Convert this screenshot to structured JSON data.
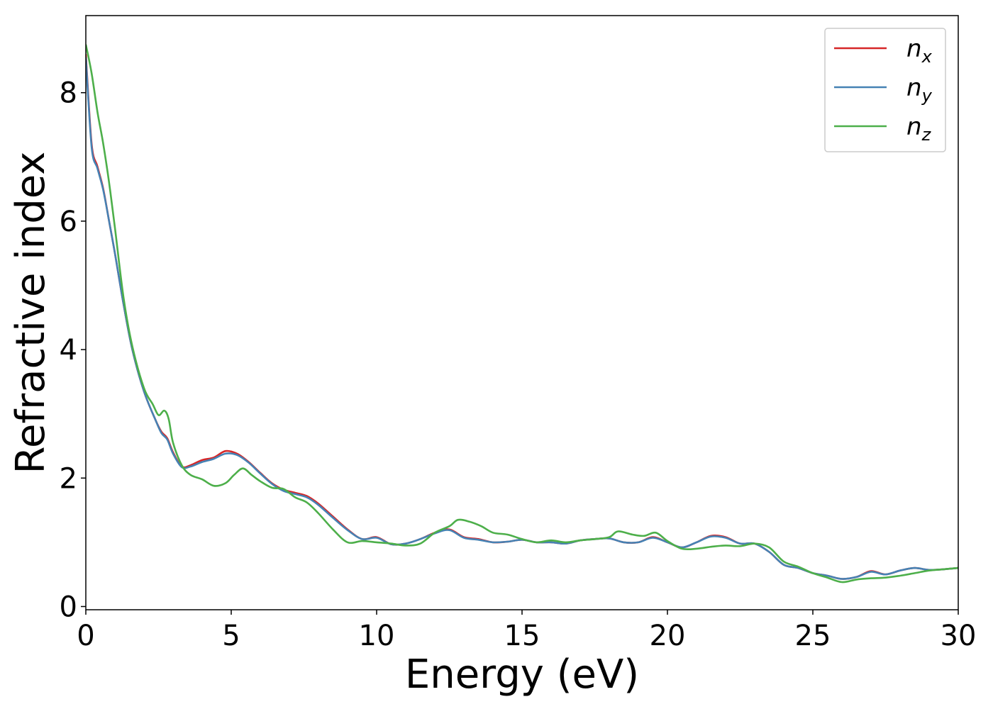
{
  "chart_data": {
    "type": "line",
    "xlabel": "Energy (eV)",
    "ylabel": "Refractive index",
    "xlim": [
      0,
      30
    ],
    "ylim": [
      -0.05,
      9.2
    ],
    "xticks": [
      0,
      5,
      10,
      15,
      20,
      25,
      30
    ],
    "yticks": [
      0,
      2,
      4,
      6,
      8
    ],
    "grid": false,
    "legend_position": "top-right",
    "series": [
      {
        "name": "n_x",
        "label_base": "n",
        "label_sub": "x",
        "color": "#d62728",
        "x": [
          0,
          0.2,
          0.4,
          0.6,
          0.8,
          1.0,
          1.3,
          1.6,
          2.0,
          2.4,
          2.6,
          2.8,
          3.0,
          3.3,
          3.6,
          4.0,
          4.4,
          4.8,
          5.2,
          5.6,
          6.0,
          6.4,
          6.8,
          7.2,
          7.6,
          8.0,
          8.5,
          9.0,
          9.5,
          10.0,
          10.5,
          11.0,
          11.5,
          12.0,
          12.5,
          13.0,
          13.5,
          14.0,
          14.5,
          15.0,
          15.5,
          16.0,
          16.5,
          17.0,
          17.5,
          18.0,
          18.5,
          19.0,
          19.5,
          20.0,
          20.5,
          21.0,
          21.5,
          22.0,
          22.5,
          23.0,
          23.5,
          24.0,
          24.5,
          25.0,
          25.5,
          26.0,
          26.5,
          27.0,
          27.5,
          28.0,
          28.5,
          29.0,
          29.5,
          30.0
        ],
        "y": [
          8.6,
          7.2,
          6.85,
          6.5,
          6.0,
          5.5,
          4.7,
          4.0,
          3.35,
          2.9,
          2.72,
          2.62,
          2.4,
          2.18,
          2.2,
          2.28,
          2.32,
          2.42,
          2.38,
          2.25,
          2.08,
          1.92,
          1.82,
          1.77,
          1.72,
          1.6,
          1.4,
          1.2,
          1.05,
          1.08,
          0.97,
          0.98,
          1.05,
          1.15,
          1.2,
          1.08,
          1.05,
          1.0,
          1.01,
          1.04,
          1.0,
          1.0,
          0.98,
          1.03,
          1.05,
          1.06,
          1.0,
          1.0,
          1.08,
          1.0,
          0.92,
          1.0,
          1.1,
          1.08,
          0.98,
          0.98,
          0.85,
          0.65,
          0.6,
          0.52,
          0.48,
          0.43,
          0.46,
          0.55,
          0.5,
          0.56,
          0.6,
          0.57,
          0.58,
          0.6
        ]
      },
      {
        "name": "n_y",
        "label_base": "n",
        "label_sub": "y",
        "color": "#4682b4",
        "x": [
          0,
          0.2,
          0.4,
          0.6,
          0.8,
          1.0,
          1.3,
          1.6,
          2.0,
          2.4,
          2.6,
          2.8,
          3.0,
          3.3,
          3.6,
          4.0,
          4.4,
          4.8,
          5.2,
          5.6,
          6.0,
          6.4,
          6.8,
          7.2,
          7.6,
          8.0,
          8.5,
          9.0,
          9.5,
          10.0,
          10.5,
          11.0,
          11.5,
          12.0,
          12.5,
          13.0,
          13.5,
          14.0,
          14.5,
          15.0,
          15.5,
          16.0,
          16.5,
          17.0,
          17.5,
          18.0,
          18.5,
          19.0,
          19.5,
          20.0,
          20.5,
          21.0,
          21.5,
          22.0,
          22.5,
          23.0,
          23.5,
          24.0,
          24.5,
          25.0,
          25.5,
          26.0,
          26.5,
          27.0,
          27.5,
          28.0,
          28.5,
          29.0,
          29.5,
          30.0
        ],
        "y": [
          8.55,
          7.15,
          6.82,
          6.48,
          6.0,
          5.5,
          4.7,
          4.0,
          3.35,
          2.9,
          2.7,
          2.6,
          2.38,
          2.17,
          2.18,
          2.25,
          2.3,
          2.38,
          2.36,
          2.24,
          2.07,
          1.91,
          1.8,
          1.75,
          1.7,
          1.58,
          1.38,
          1.19,
          1.05,
          1.07,
          0.97,
          0.98,
          1.05,
          1.14,
          1.19,
          1.07,
          1.04,
          1.0,
          1.01,
          1.04,
          1.0,
          1.0,
          0.98,
          1.03,
          1.05,
          1.06,
          1.0,
          1.0,
          1.07,
          1.0,
          0.92,
          1.0,
          1.09,
          1.07,
          0.98,
          0.98,
          0.85,
          0.65,
          0.6,
          0.52,
          0.48,
          0.43,
          0.46,
          0.54,
          0.5,
          0.56,
          0.6,
          0.57,
          0.58,
          0.6
        ]
      },
      {
        "name": "n_z",
        "label_base": "n",
        "label_sub": "z",
        "color": "#4daf4a",
        "x": [
          0,
          0.2,
          0.4,
          0.6,
          0.8,
          1.0,
          1.3,
          1.6,
          2.0,
          2.3,
          2.5,
          2.7,
          2.85,
          3.0,
          3.3,
          3.6,
          4.0,
          4.4,
          4.8,
          5.1,
          5.4,
          5.7,
          6.0,
          6.4,
          6.8,
          7.2,
          7.6,
          8.0,
          8.5,
          9.0,
          9.5,
          10.0,
          10.5,
          11.0,
          11.5,
          12.0,
          12.5,
          12.8,
          13.2,
          13.6,
          14.0,
          14.5,
          15.0,
          15.5,
          16.0,
          16.5,
          17.0,
          17.5,
          18.0,
          18.3,
          18.8,
          19.2,
          19.6,
          20.0,
          20.5,
          21.0,
          21.5,
          22.0,
          22.5,
          23.0,
          23.5,
          24.0,
          24.5,
          25.0,
          25.5,
          26.0,
          26.5,
          27.0,
          27.5,
          28.0,
          28.5,
          29.0,
          29.5,
          30.0
        ],
        "y": [
          8.75,
          8.3,
          7.7,
          7.2,
          6.6,
          5.9,
          4.8,
          4.05,
          3.4,
          3.15,
          2.98,
          3.05,
          2.92,
          2.55,
          2.2,
          2.05,
          1.98,
          1.88,
          1.92,
          2.05,
          2.15,
          2.05,
          1.95,
          1.85,
          1.83,
          1.7,
          1.62,
          1.45,
          1.2,
          1.0,
          1.02,
          1.0,
          0.98,
          0.95,
          0.98,
          1.15,
          1.25,
          1.35,
          1.32,
          1.25,
          1.15,
          1.12,
          1.05,
          1.0,
          1.03,
          1.0,
          1.03,
          1.05,
          1.08,
          1.17,
          1.12,
          1.1,
          1.15,
          1.02,
          0.9,
          0.9,
          0.93,
          0.95,
          0.94,
          0.98,
          0.92,
          0.7,
          0.62,
          0.52,
          0.45,
          0.38,
          0.42,
          0.44,
          0.45,
          0.48,
          0.52,
          0.56,
          0.58,
          0.6
        ]
      }
    ]
  }
}
